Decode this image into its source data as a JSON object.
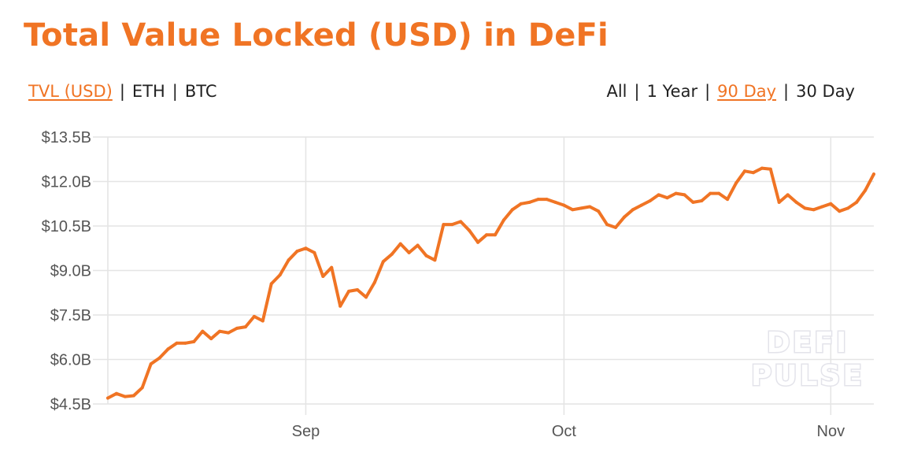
{
  "title": "Total Value Locked (USD) in DeFi",
  "unit_options": [
    {
      "label": "TVL (USD)",
      "active": true
    },
    {
      "label": "ETH",
      "active": false
    },
    {
      "label": "BTC",
      "active": false
    }
  ],
  "range_options": [
    {
      "label": "All",
      "active": false
    },
    {
      "label": "1 Year",
      "active": false
    },
    {
      "label": "90 Day",
      "active": true
    },
    {
      "label": "30 Day",
      "active": false
    }
  ],
  "separator": "|",
  "watermark": [
    "DEFI",
    "PULSE"
  ],
  "colors": {
    "accent": "#f07424",
    "line": "#f07424",
    "grid": "#e4e4e4",
    "text": "#222222"
  },
  "chart_data": {
    "type": "line",
    "title": "Total Value Locked (USD) in DeFi",
    "xlabel": "",
    "ylabel": "",
    "grid": true,
    "ylim": [
      4.5,
      13.5
    ],
    "y_ticks": [
      {
        "value": 13.5,
        "label": "$13.5B"
      },
      {
        "value": 12.0,
        "label": "$12.0B"
      },
      {
        "value": 10.5,
        "label": "$10.5B"
      },
      {
        "value": 9.0,
        "label": "$9.0B"
      },
      {
        "value": 7.5,
        "label": "$7.5B"
      },
      {
        "value": 6.0,
        "label": "$6.0B"
      },
      {
        "value": 4.5,
        "label": "$4.5B"
      }
    ],
    "x_ticks": [
      {
        "date": "2020-09-01",
        "label": "Sep"
      },
      {
        "date": "2020-10-01",
        "label": "Oct"
      },
      {
        "date": "2020-11-01",
        "label": "Nov"
      }
    ],
    "xlim": [
      "2020-08-09",
      "2020-11-06"
    ],
    "series": [
      {
        "points": [
          [
            "2020-08-09",
            4.7
          ],
          [
            "2020-08-10",
            4.85
          ],
          [
            "2020-08-11",
            4.75
          ],
          [
            "2020-08-12",
            4.78
          ],
          [
            "2020-08-13",
            5.05
          ],
          [
            "2020-08-14",
            5.85
          ],
          [
            "2020-08-15",
            6.05
          ],
          [
            "2020-08-16",
            6.35
          ],
          [
            "2020-08-17",
            6.55
          ],
          [
            "2020-08-18",
            6.55
          ],
          [
            "2020-08-19",
            6.6
          ],
          [
            "2020-08-20",
            6.95
          ],
          [
            "2020-08-21",
            6.7
          ],
          [
            "2020-08-22",
            6.95
          ],
          [
            "2020-08-23",
            6.9
          ],
          [
            "2020-08-24",
            7.05
          ],
          [
            "2020-08-25",
            7.1
          ],
          [
            "2020-08-26",
            7.45
          ],
          [
            "2020-08-27",
            7.3
          ],
          [
            "2020-08-28",
            8.55
          ],
          [
            "2020-08-29",
            8.85
          ],
          [
            "2020-08-30",
            9.35
          ],
          [
            "2020-08-31",
            9.65
          ],
          [
            "2020-09-01",
            9.75
          ],
          [
            "2020-09-02",
            9.6
          ],
          [
            "2020-09-03",
            8.8
          ],
          [
            "2020-09-04",
            9.1
          ],
          [
            "2020-09-05",
            7.8
          ],
          [
            "2020-09-06",
            8.3
          ],
          [
            "2020-09-07",
            8.35
          ],
          [
            "2020-09-08",
            8.1
          ],
          [
            "2020-09-09",
            8.6
          ],
          [
            "2020-09-10",
            9.3
          ],
          [
            "2020-09-11",
            9.55
          ],
          [
            "2020-09-12",
            9.9
          ],
          [
            "2020-09-13",
            9.6
          ],
          [
            "2020-09-14",
            9.85
          ],
          [
            "2020-09-15",
            9.5
          ],
          [
            "2020-09-16",
            9.35
          ],
          [
            "2020-09-17",
            10.55
          ],
          [
            "2020-09-18",
            10.55
          ],
          [
            "2020-09-19",
            10.65
          ],
          [
            "2020-09-20",
            10.35
          ],
          [
            "2020-09-21",
            9.95
          ],
          [
            "2020-09-22",
            10.2
          ],
          [
            "2020-09-23",
            10.2
          ],
          [
            "2020-09-24",
            10.7
          ],
          [
            "2020-09-25",
            11.05
          ],
          [
            "2020-09-26",
            11.25
          ],
          [
            "2020-09-27",
            11.3
          ],
          [
            "2020-09-28",
            11.4
          ],
          [
            "2020-09-29",
            11.4
          ],
          [
            "2020-09-30",
            11.3
          ],
          [
            "2020-10-01",
            11.2
          ],
          [
            "2020-10-02",
            11.05
          ],
          [
            "2020-10-03",
            11.1
          ],
          [
            "2020-10-04",
            11.15
          ],
          [
            "2020-10-05",
            11.0
          ],
          [
            "2020-10-06",
            10.55
          ],
          [
            "2020-10-07",
            10.45
          ],
          [
            "2020-10-08",
            10.8
          ],
          [
            "2020-10-09",
            11.05
          ],
          [
            "2020-10-10",
            11.2
          ],
          [
            "2020-10-11",
            11.35
          ],
          [
            "2020-10-12",
            11.55
          ],
          [
            "2020-10-13",
            11.45
          ],
          [
            "2020-10-14",
            11.6
          ],
          [
            "2020-10-15",
            11.55
          ],
          [
            "2020-10-16",
            11.3
          ],
          [
            "2020-10-17",
            11.35
          ],
          [
            "2020-10-18",
            11.6
          ],
          [
            "2020-10-19",
            11.6
          ],
          [
            "2020-10-20",
            11.4
          ],
          [
            "2020-10-21",
            11.95
          ],
          [
            "2020-10-22",
            12.35
          ],
          [
            "2020-10-23",
            12.3
          ],
          [
            "2020-10-24",
            12.45
          ],
          [
            "2020-10-25",
            12.42
          ],
          [
            "2020-10-26",
            11.3
          ],
          [
            "2020-10-27",
            11.55
          ],
          [
            "2020-10-28",
            11.3
          ],
          [
            "2020-10-29",
            11.1
          ],
          [
            "2020-10-30",
            11.05
          ],
          [
            "2020-10-31",
            11.15
          ],
          [
            "2020-11-01",
            11.25
          ],
          [
            "2020-11-02",
            11.0
          ],
          [
            "2020-11-03",
            11.1
          ],
          [
            "2020-11-04",
            11.3
          ],
          [
            "2020-11-05",
            11.7
          ],
          [
            "2020-11-06",
            12.25
          ]
        ]
      }
    ]
  }
}
